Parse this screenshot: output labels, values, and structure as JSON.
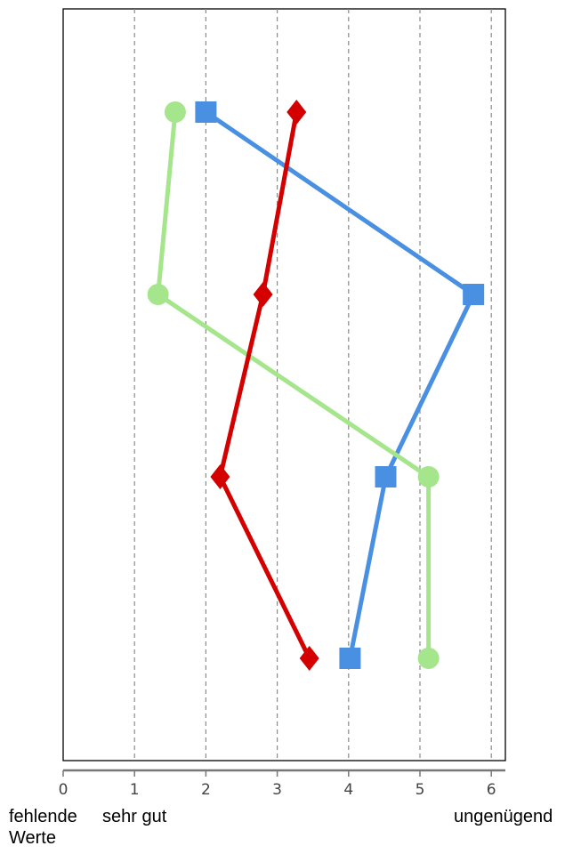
{
  "chart_data": {
    "type": "line",
    "orientation": "horizontal-profile",
    "xlim": [
      0,
      6.2
    ],
    "x_ticks": [
      0,
      1,
      2,
      3,
      4,
      5,
      6
    ],
    "grid": "vertical dashed at 1–6",
    "row_count": 4,
    "series": [
      {
        "marker": "square",
        "color": "#4a90e2",
        "x": [
          2.0,
          5.75,
          4.52,
          4.02
        ]
      },
      {
        "marker": "circle",
        "color": "#a5e58c",
        "x": [
          1.57,
          1.33,
          5.12,
          5.12
        ]
      },
      {
        "marker": "diamond",
        "color": "#d40000",
        "x": [
          3.27,
          2.8,
          2.2,
          3.45
        ]
      }
    ],
    "annotations": {
      "left": "fehlende Werte",
      "left_line1": "fehlende",
      "left_line2": "Werte",
      "middle": "sehr gut",
      "right": "ungenügend"
    }
  }
}
